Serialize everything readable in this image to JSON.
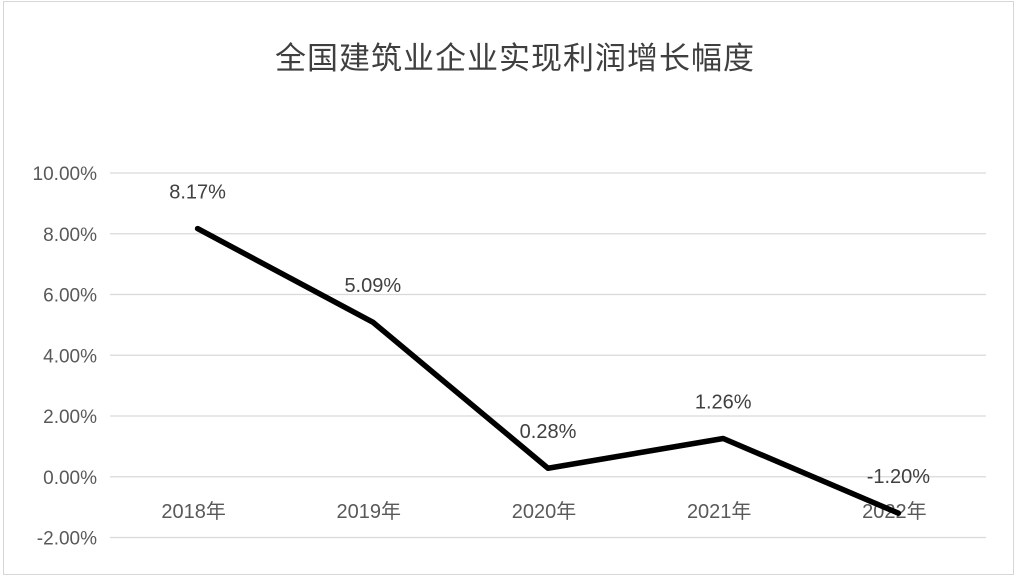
{
  "chart_data": {
    "type": "line",
    "title": "全国建筑业企业实现利润增长幅度",
    "categories": [
      "2018年",
      "2019年",
      "2020年",
      "2021年",
      "2022年"
    ],
    "values": [
      8.17,
      5.09,
      0.28,
      1.26,
      -1.2
    ],
    "data_labels": [
      "8.17%",
      "5.09%",
      "0.28%",
      "1.26%",
      "-1.20%"
    ],
    "y_ticks": [
      {
        "label": "10.00%",
        "value": 10
      },
      {
        "label": "8.00%",
        "value": 8
      },
      {
        "label": "6.00%",
        "value": 6
      },
      {
        "label": "4.00%",
        "value": 4
      },
      {
        "label": "2.00%",
        "value": 2
      },
      {
        "label": "0.00%",
        "value": 0
      },
      {
        "label": "-2.00%",
        "value": -2
      }
    ],
    "ylim": [
      -2,
      10
    ],
    "xlabel": "",
    "ylabel": "",
    "grid": true,
    "legend": false,
    "colors": {
      "series_line": "#000000",
      "gridline": "#d9d9d9",
      "tick_text": "#595959",
      "data_label_text": "#404040",
      "title_text": "#3f3f3f",
      "frame_border": "#d6d6d6",
      "background": "#ffffff"
    }
  }
}
